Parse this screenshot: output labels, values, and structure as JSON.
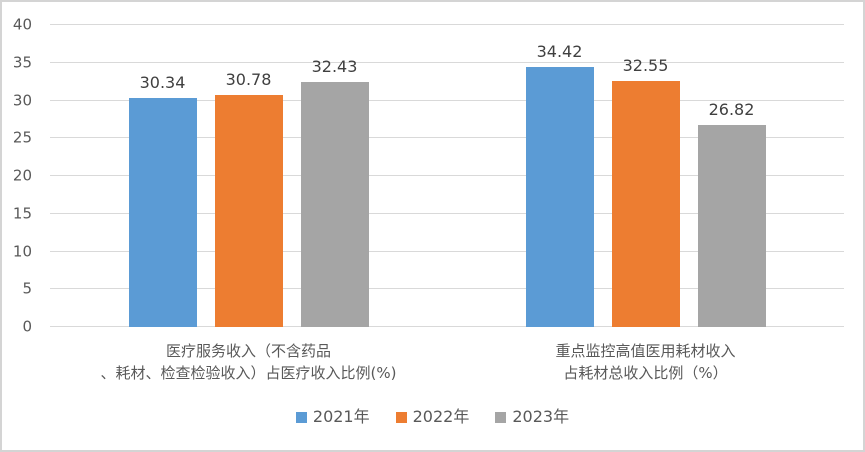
{
  "chart_data": {
    "type": "bar",
    "categories": [
      [
        "医疗服务收入（不含药品",
        "、耗材、检查检验收入）占医疗收入比例(%)"
      ],
      [
        "重点监控高值医用耗材收入",
        "占耗材总收入比例（%）"
      ]
    ],
    "series": [
      {
        "name": "2021年",
        "color": "#5B9BD5",
        "values": [
          30.34,
          34.42
        ]
      },
      {
        "name": "2022年",
        "color": "#ED7D31",
        "values": [
          30.78,
          32.55
        ]
      },
      {
        "name": "2023年",
        "color": "#A5A5A5",
        "values": [
          32.43,
          26.82
        ]
      }
    ],
    "title": "",
    "xlabel": "",
    "ylabel": "",
    "ylim": [
      0,
      40
    ],
    "yticks": [
      0,
      5,
      10,
      15,
      20,
      25,
      30,
      35,
      40
    ],
    "grid": true,
    "legend_position": "bottom",
    "value_label_decimals": 2,
    "colors": {
      "gridline": "#d9d9d9",
      "axis_text": "#595959",
      "value_label_text": "#404040",
      "legend_text": "#595959",
      "background": "#ffffff"
    }
  }
}
